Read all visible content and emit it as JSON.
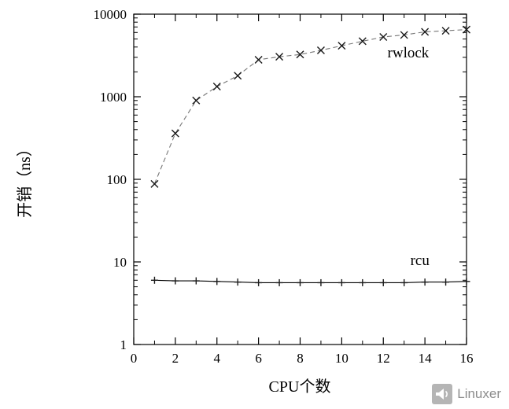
{
  "chart_data": {
    "type": "line",
    "title": "",
    "xlabel": "CPU个数",
    "ylabel": "开销（ns）",
    "xlim": [
      0,
      16
    ],
    "ylim": [
      1,
      10000
    ],
    "yscale": "log",
    "grid": false,
    "legend_position": "inline-labels",
    "xticks": [
      0,
      2,
      4,
      6,
      8,
      10,
      12,
      14,
      16
    ],
    "yticks": [
      1,
      10,
      100,
      1000,
      10000
    ],
    "x": [
      1,
      2,
      3,
      4,
      5,
      6,
      7,
      8,
      9,
      10,
      11,
      12,
      13,
      14,
      15,
      16
    ],
    "series": [
      {
        "name": "rwlock",
        "line": "dashed",
        "marker": "x",
        "values": [
          88,
          360,
          900,
          1330,
          1800,
          2800,
          3050,
          3250,
          3650,
          4150,
          4700,
          5300,
          5600,
          6100,
          6300,
          6500
        ]
      },
      {
        "name": "rcu",
        "line": "solid",
        "marker": "+",
        "values": [
          6.0,
          5.9,
          5.9,
          5.8,
          5.7,
          5.6,
          5.6,
          5.6,
          5.6,
          5.6,
          5.6,
          5.6,
          5.6,
          5.7,
          5.7,
          5.8
        ]
      }
    ],
    "annotations": [
      {
        "text": "rwlock",
        "x": 12.2,
        "y": 3400
      },
      {
        "text": "rcu",
        "x": 13.3,
        "y": 10.5
      }
    ]
  },
  "watermark": {
    "text": "Linuxer",
    "icon": "megaphone-icon"
  },
  "colors": {
    "background": "#ffffff",
    "axis": "#000000",
    "rwlock_line": "#777777",
    "marker": "#1a1a1a",
    "watermark_text": "#8c8c8c",
    "watermark_icon_bg": "#b5b5b5"
  }
}
